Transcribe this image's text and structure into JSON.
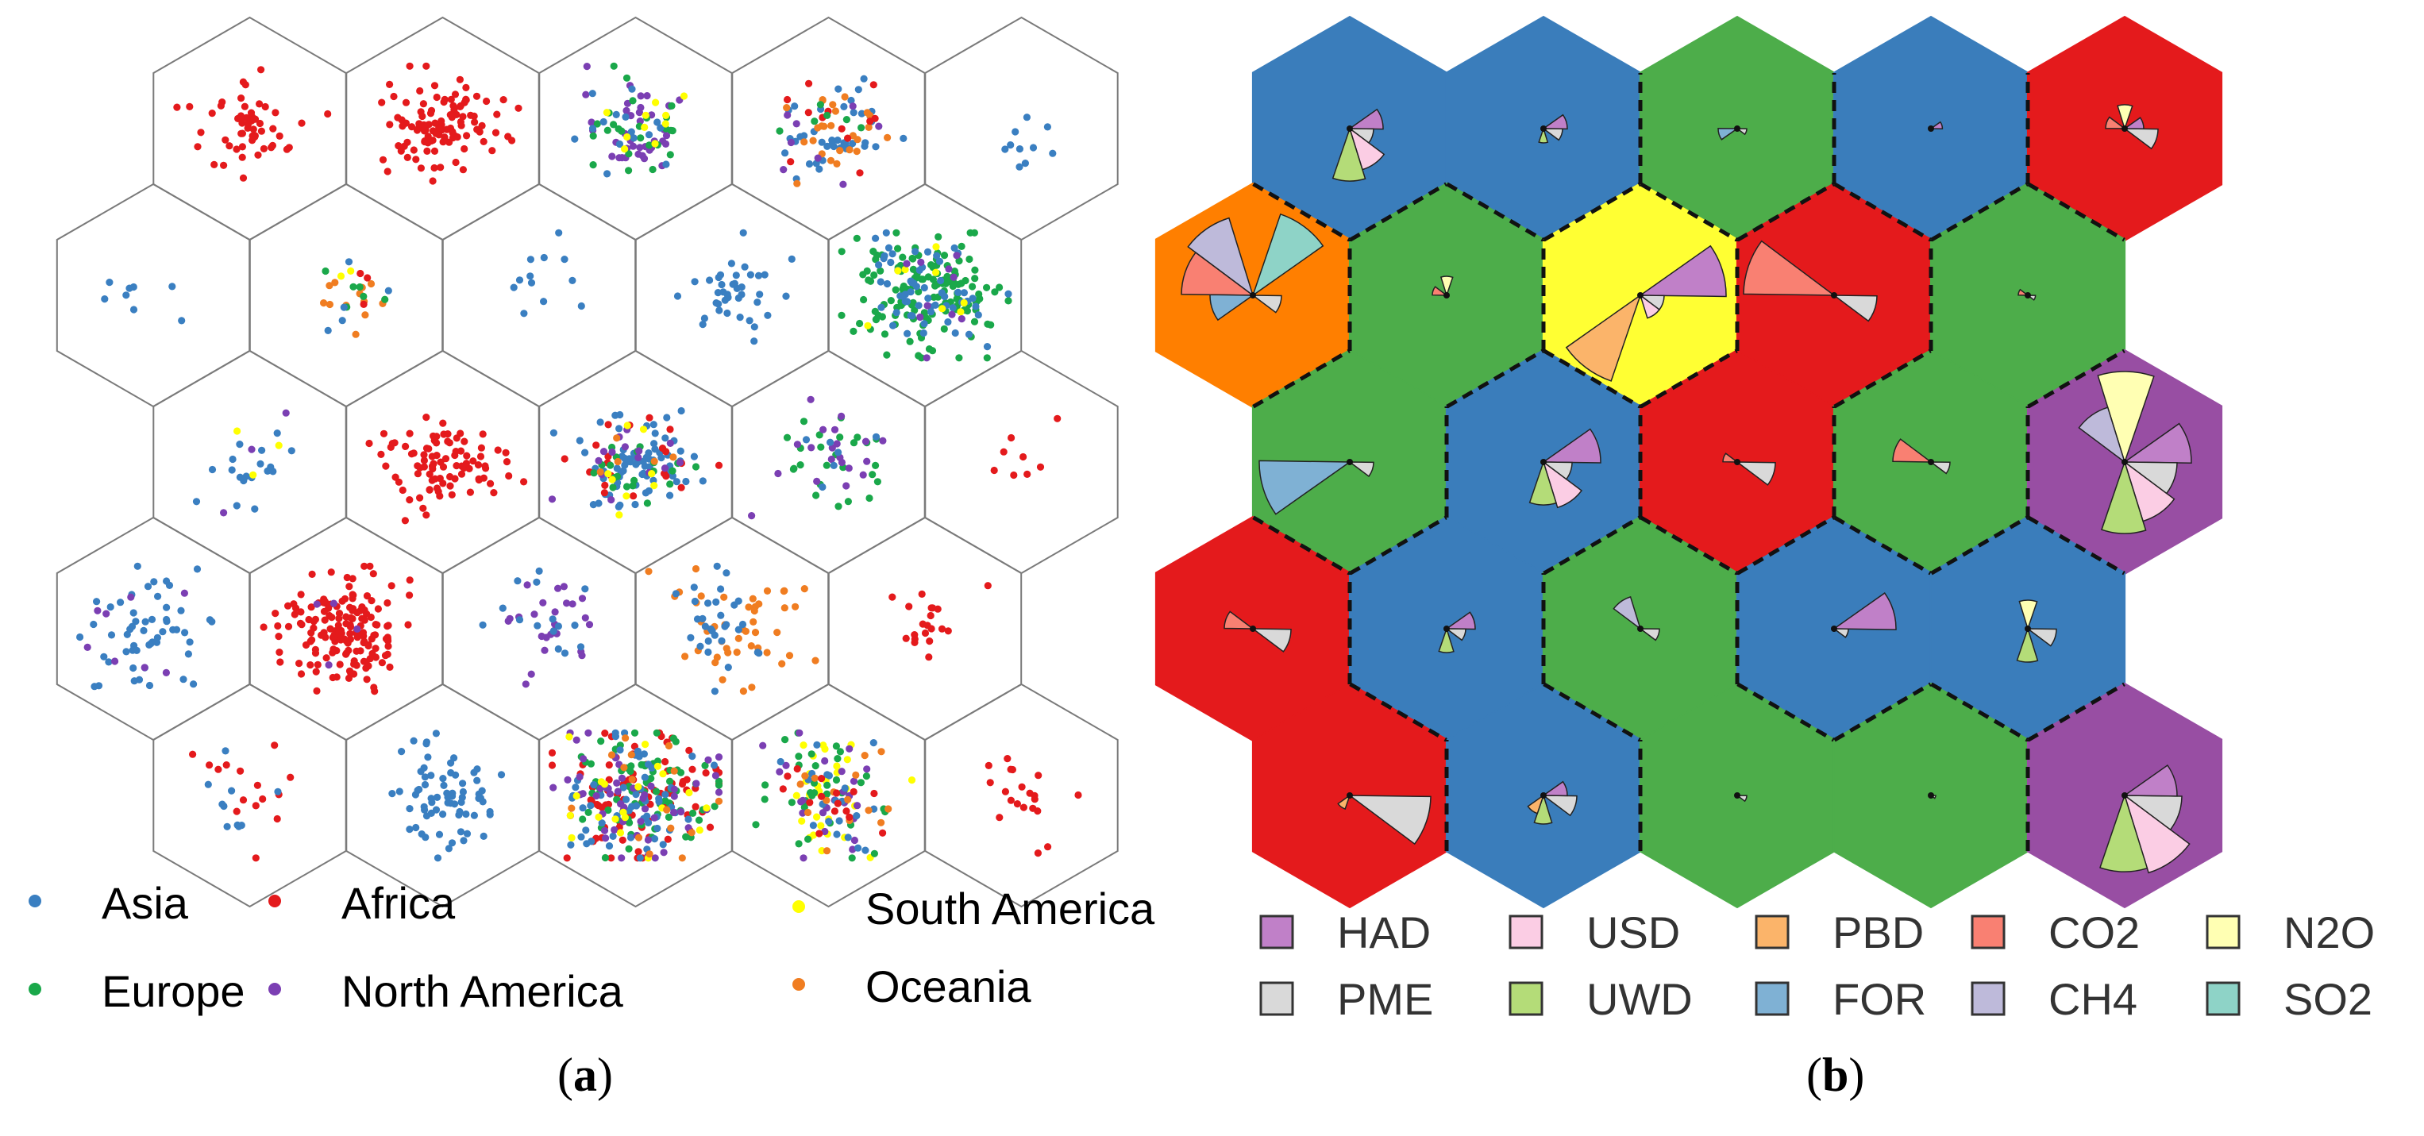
{
  "panel_a": {
    "label": "a",
    "legend": [
      {
        "name": "Asia",
        "color": "#3a7fc1"
      },
      {
        "name": "Africa",
        "color": "#e41a1c"
      },
      {
        "name": "South America",
        "color": "#ffff00"
      },
      {
        "name": "Europe",
        "color": "#1aa84a"
      },
      {
        "name": "North America",
        "color": "#7b3fb3"
      },
      {
        "name": "Oceania",
        "color": "#f07d21"
      }
    ],
    "cells": [
      {
        "row": 0,
        "col": 0,
        "points": [
          {
            "c": "Africa",
            "n": 55
          }
        ],
        "spread": 0.45
      },
      {
        "row": 0,
        "col": 1,
        "points": [
          {
            "c": "Africa",
            "n": 110
          }
        ],
        "spread": 0.45
      },
      {
        "row": 0,
        "col": 2,
        "points": [
          {
            "c": "North America",
            "n": 40
          },
          {
            "c": "Europe",
            "n": 25
          },
          {
            "c": "Asia",
            "n": 15
          },
          {
            "c": "South America",
            "n": 10
          }
        ],
        "spread": 0.42
      },
      {
        "row": 0,
        "col": 3,
        "points": [
          {
            "c": "Asia",
            "n": 40
          },
          {
            "c": "Oceania",
            "n": 25
          },
          {
            "c": "Africa",
            "n": 12
          },
          {
            "c": "North America",
            "n": 8
          },
          {
            "c": "Europe",
            "n": 6
          }
        ],
        "spread": 0.45
      },
      {
        "row": 0,
        "col": 4,
        "points": [
          {
            "c": "Asia",
            "n": 10
          }
        ],
        "spread": 0.4
      },
      {
        "row": 1,
        "col": 0,
        "points": [
          {
            "c": "Asia",
            "n": 8
          }
        ],
        "spread": 0.45
      },
      {
        "row": 1,
        "col": 1,
        "points": [
          {
            "c": "Oceania",
            "n": 12
          },
          {
            "c": "Europe",
            "n": 6
          },
          {
            "c": "Asia",
            "n": 5
          },
          {
            "c": "Africa",
            "n": 3
          },
          {
            "c": "South America",
            "n": 2
          }
        ],
        "spread": 0.3
      },
      {
        "row": 1,
        "col": 2,
        "points": [
          {
            "c": "Asia",
            "n": 12
          }
        ],
        "spread": 0.45
      },
      {
        "row": 1,
        "col": 3,
        "points": [
          {
            "c": "Asia",
            "n": 40
          }
        ],
        "spread": 0.4
      },
      {
        "row": 1,
        "col": 4,
        "points": [
          {
            "c": "Europe",
            "n": 150
          },
          {
            "c": "Asia",
            "n": 60
          },
          {
            "c": "South America",
            "n": 8
          },
          {
            "c": "North America",
            "n": 10
          }
        ],
        "spread": 0.55
      },
      {
        "row": 2,
        "col": 0,
        "points": [
          {
            "c": "Asia",
            "n": 18
          },
          {
            "c": "South America",
            "n": 3
          },
          {
            "c": "North America",
            "n": 3
          }
        ],
        "spread": 0.5
      },
      {
        "row": 2,
        "col": 1,
        "points": [
          {
            "c": "Africa",
            "n": 90
          }
        ],
        "spread": 0.45
      },
      {
        "row": 2,
        "col": 2,
        "points": [
          {
            "c": "Asia",
            "n": 70
          },
          {
            "c": "Africa",
            "n": 20
          },
          {
            "c": "Europe",
            "n": 20
          },
          {
            "c": "North America",
            "n": 15
          },
          {
            "c": "South America",
            "n": 8
          },
          {
            "c": "Oceania",
            "n": 5
          }
        ],
        "spread": 0.5
      },
      {
        "row": 2,
        "col": 3,
        "points": [
          {
            "c": "Europe",
            "n": 25
          },
          {
            "c": "North America",
            "n": 20
          },
          {
            "c": "Asia",
            "n": 6
          }
        ],
        "spread": 0.45
      },
      {
        "row": 2,
        "col": 4,
        "points": [
          {
            "c": "Africa",
            "n": 8
          }
        ],
        "spread": 0.35
      },
      {
        "row": 3,
        "col": 0,
        "points": [
          {
            "c": "Asia",
            "n": 55
          },
          {
            "c": "North America",
            "n": 8
          }
        ],
        "spread": 0.55
      },
      {
        "row": 3,
        "col": 1,
        "points": [
          {
            "c": "Africa",
            "n": 160
          },
          {
            "c": "North America",
            "n": 4
          }
        ],
        "spread": 0.5
      },
      {
        "row": 3,
        "col": 2,
        "points": [
          {
            "c": "North America",
            "n": 25
          },
          {
            "c": "Asia",
            "n": 15
          }
        ],
        "spread": 0.45
      },
      {
        "row": 3,
        "col": 3,
        "points": [
          {
            "c": "Oceania",
            "n": 45
          },
          {
            "c": "Asia",
            "n": 30
          }
        ],
        "spread": 0.55
      },
      {
        "row": 3,
        "col": 4,
        "points": [
          {
            "c": "Africa",
            "n": 20
          }
        ],
        "spread": 0.4
      },
      {
        "row": 4,
        "col": 0,
        "points": [
          {
            "c": "Africa",
            "n": 15
          },
          {
            "c": "Asia",
            "n": 10
          }
        ],
        "spread": 0.45
      },
      {
        "row": 4,
        "col": 1,
        "points": [
          {
            "c": "Asia",
            "n": 70
          }
        ],
        "spread": 0.45
      },
      {
        "row": 4,
        "col": 2,
        "points": [
          {
            "c": "Africa",
            "n": 90
          },
          {
            "c": "Europe",
            "n": 70
          },
          {
            "c": "Asia",
            "n": 60
          },
          {
            "c": "North America",
            "n": 50
          },
          {
            "c": "South America",
            "n": 20
          },
          {
            "c": "Oceania",
            "n": 15
          }
        ],
        "spread": 0.6
      },
      {
        "row": 4,
        "col": 3,
        "points": [
          {
            "c": "South America",
            "n": 30
          },
          {
            "c": "Europe",
            "n": 35
          },
          {
            "c": "North America",
            "n": 25
          },
          {
            "c": "Asia",
            "n": 20
          },
          {
            "c": "Oceania",
            "n": 15
          },
          {
            "c": "Africa",
            "n": 15
          }
        ],
        "spread": 0.5
      },
      {
        "row": 4,
        "col": 4,
        "points": [
          {
            "c": "Africa",
            "n": 20
          }
        ],
        "spread": 0.45
      }
    ]
  },
  "panel_b": {
    "label": "b",
    "cluster_colors": {
      "blue": "#3a7dbb",
      "green": "#4dad4a",
      "red": "#e41a1c",
      "orange": "#ff7f00",
      "yellow": "#ffff33",
      "purple": "#984ea3"
    },
    "variables": [
      {
        "name": "HAD",
        "color": "#c080c8"
      },
      {
        "name": "PME",
        "color": "#d9d9d9"
      },
      {
        "name": "USD",
        "color": "#fbcde4"
      },
      {
        "name": "UWD",
        "color": "#b4dc78"
      },
      {
        "name": "PBD",
        "color": "#fbb46a"
      },
      {
        "name": "FOR",
        "color": "#7fb1d4"
      },
      {
        "name": "CO2",
        "color": "#f98072"
      },
      {
        "name": "CH4",
        "color": "#bebada"
      },
      {
        "name": "N2O",
        "color": "#ffffb3"
      },
      {
        "name": "SO2",
        "color": "#8ed3c7"
      }
    ],
    "cells": [
      {
        "row": 0,
        "col": 0,
        "cluster": "blue",
        "values": {
          "HAD": 0.35,
          "PME": 0.25,
          "USD": 0.45,
          "UWD": 0.55
        }
      },
      {
        "row": 0,
        "col": 1,
        "cluster": "blue",
        "values": {
          "HAD": 0.25,
          "PME": 0.2,
          "UWD": 0.15
        }
      },
      {
        "row": 0,
        "col": 2,
        "cluster": "green",
        "values": {
          "FOR": 0.2,
          "PME": 0.1
        }
      },
      {
        "row": 0,
        "col": 3,
        "cluster": "blue",
        "values": {
          "HAD": 0.12
        }
      },
      {
        "row": 0,
        "col": 4,
        "cluster": "red",
        "values": {
          "PME": 0.35,
          "HAD": 0.2,
          "N2O": 0.25,
          "CO2": 0.2
        }
      },
      {
        "row": 1,
        "col": 0,
        "cluster": "orange",
        "values": {
          "SO2": 0.9,
          "CH4": 0.85,
          "CO2": 0.75,
          "FOR": 0.45,
          "PME": 0.3
        }
      },
      {
        "row": 1,
        "col": 1,
        "cluster": "green",
        "values": {
          "CO2": 0.15,
          "N2O": 0.2
        }
      },
      {
        "row": 1,
        "col": 2,
        "cluster": "yellow",
        "values": {
          "PBD": 0.95,
          "HAD": 0.9,
          "USD": 0.25,
          "PME": 0.25
        }
      },
      {
        "row": 1,
        "col": 3,
        "cluster": "red",
        "values": {
          "CO2": 0.95,
          "PME": 0.45
        }
      },
      {
        "row": 1,
        "col": 4,
        "cluster": "green",
        "values": {
          "CO2": 0.1,
          "PME": 0.08
        }
      },
      {
        "row": 2,
        "col": 0,
        "cluster": "green",
        "values": {
          "FOR": 0.95,
          "PME": 0.25
        }
      },
      {
        "row": 2,
        "col": 1,
        "cluster": "blue",
        "values": {
          "HAD": 0.6,
          "USD": 0.5,
          "UWD": 0.45,
          "PME": 0.3
        }
      },
      {
        "row": 2,
        "col": 2,
        "cluster": "red",
        "values": {
          "PME": 0.4,
          "CO2": 0.15
        }
      },
      {
        "row": 2,
        "col": 3,
        "cluster": "green",
        "values": {
          "CO2": 0.4,
          "PME": 0.2
        }
      },
      {
        "row": 2,
        "col": 4,
        "cluster": "purple",
        "values": {
          "N2O": 0.95,
          "HAD": 0.7,
          "USD": 0.65,
          "UWD": 0.75,
          "PME": 0.55,
          "CH4": 0.6
        }
      },
      {
        "row": 3,
        "col": 0,
        "cluster": "red",
        "values": {
          "PME": 0.4,
          "CO2": 0.3
        }
      },
      {
        "row": 3,
        "col": 1,
        "cluster": "blue",
        "values": {
          "HAD": 0.3,
          "UWD": 0.25,
          "PME": 0.2
        }
      },
      {
        "row": 3,
        "col": 2,
        "cluster": "green",
        "values": {
          "CH4": 0.35,
          "PME": 0.2
        }
      },
      {
        "row": 3,
        "col": 3,
        "cluster": "blue",
        "values": {
          "HAD": 0.65,
          "PME": 0.15
        }
      },
      {
        "row": 3,
        "col": 4,
        "cluster": "blue",
        "values": {
          "UWD": 0.35,
          "PME": 0.3,
          "N2O": 0.3
        }
      },
      {
        "row": 4,
        "col": 0,
        "cluster": "red",
        "values": {
          "PME": 0.85,
          "PBD": 0.15
        }
      },
      {
        "row": 4,
        "col": 1,
        "cluster": "blue",
        "values": {
          "PME": 0.35,
          "UWD": 0.3,
          "HAD": 0.25,
          "PBD": 0.2
        }
      },
      {
        "row": 4,
        "col": 2,
        "cluster": "green",
        "values": {
          "PME": 0.1
        }
      },
      {
        "row": 4,
        "col": 3,
        "cluster": "green",
        "values": {
          "PME": 0.05
        }
      },
      {
        "row": 4,
        "col": 4,
        "cluster": "purple",
        "values": {
          "USD": 0.85,
          "UWD": 0.8,
          "PME": 0.6,
          "HAD": 0.55
        }
      }
    ]
  }
}
